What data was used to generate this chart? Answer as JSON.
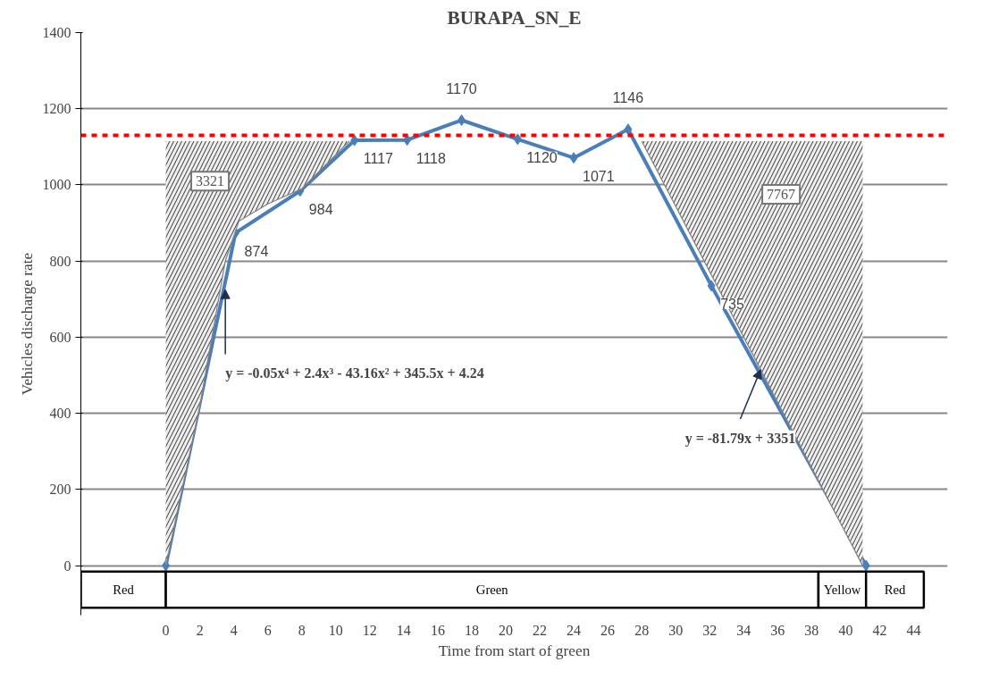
{
  "chart_data": {
    "type": "line",
    "title": "BURAPA_SN_E",
    "xlabel": "Time from start of green",
    "ylabel": "Vehicles discharge rate",
    "xlim": [
      -5,
      46
    ],
    "xticks": [
      0,
      2,
      4,
      6,
      8,
      10,
      12,
      14,
      16,
      18,
      20,
      22,
      24,
      26,
      28,
      30,
      32,
      34,
      36,
      38,
      40,
      42,
      44
    ],
    "ylim": [
      -130,
      1400
    ],
    "yticks": [
      0,
      200,
      400,
      600,
      800,
      1000,
      1200,
      1400
    ],
    "grid": "y",
    "marker": "diamond",
    "line_style": "solid",
    "series": [
      {
        "color": "#4a7ebb",
        "x": [
          0,
          4.1,
          7.9,
          11.1,
          14.2,
          17.4,
          20.7,
          24,
          27.2,
          32.1,
          41.2
        ],
        "values": [
          0,
          874,
          984,
          1117,
          1118,
          1170,
          1120,
          1071,
          1146,
          735,
          0
        ],
        "value_labels": [
          null,
          "874",
          "984",
          "1117",
          "1118",
          "1170",
          "1120",
          "1071",
          "1146",
          "735",
          null
        ]
      },
      {
        "type": "line",
        "marker": "none",
        "color": "#808080",
        "x": [
          0,
          2,
          3.5,
          4.3,
          6,
          8,
          10.8
        ],
        "values": [
          0,
          420,
          800,
          905,
          950,
          990,
          1115
        ],
        "lower": [
          0,
          420,
          800,
          905,
          950,
          990,
          1115
        ],
        "upper": [
          1115,
          1115,
          1115,
          1115,
          1115,
          1115,
          1115
        ]
      },
      {
        "type": "line",
        "marker": "none",
        "color": "#808080",
        "x": [
          28,
          41
        ],
        "values": [
          1115,
          0
        ],
        "lower": [
          1115,
          0
        ],
        "upper": [
          1115,
          1115
        ]
      }
    ],
    "ref_lines": [
      {
        "axis": "y",
        "value": 1130,
        "color": "#ff0000",
        "line_style": "dashed"
      }
    ],
    "bands": [
      {
        "axis": "x",
        "from": -5,
        "to": 0,
        "label": "Red"
      },
      {
        "axis": "x",
        "from": 0,
        "to": 38.4,
        "label": "Green"
      },
      {
        "axis": "x",
        "from": 38.4,
        "to": 41.2,
        "label": "Yellow"
      },
      {
        "axis": "x",
        "from": 41.2,
        "to": 44.6,
        "label": "Red"
      }
    ],
    "annotations": [
      {
        "text": "3321",
        "x": 2.6,
        "y": 1010
      },
      {
        "text": "7767",
        "x": 36.2,
        "y": 975
      },
      {
        "text": "y = -0.05x⁴ + 2.4x³ - 43.16x² + 345.5x + 4.24",
        "x": 3.5,
        "y": 725
      },
      {
        "text": "y = -81.79x + 3351",
        "x": 35,
        "y": 515
      }
    ]
  }
}
